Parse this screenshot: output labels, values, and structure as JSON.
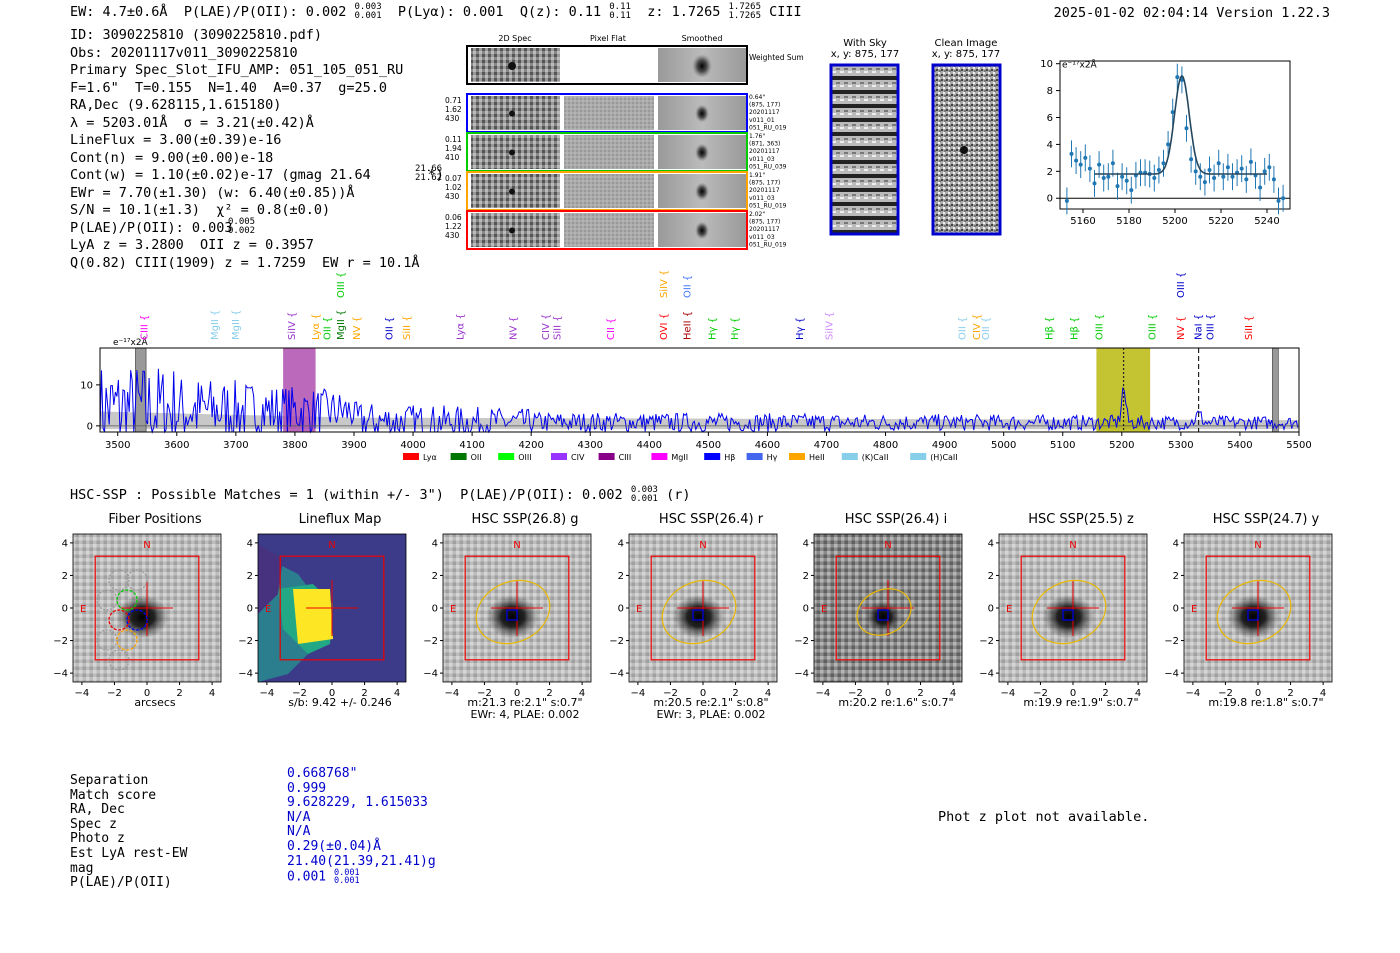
{
  "header": {
    "left": "EW: 4.7±0.6Å  P(LAE)/P(OII): 0.002   P(Lyα): 0.001  Q(z): 0.11    z: 1.7265        CIII",
    "ew": "EW: 4.7±0.6Å",
    "plae": "P(LAE)/P(OII): 0.002",
    "plae_sup": "0.003",
    "plae_sub": "0.001",
    "plya": "P(Lyα): 0.001",
    "qz": "Q(z): 0.11",
    "qz_sup": "0.11",
    "qz_sub": "0.11",
    "z": "z: 1.7265",
    "z_sup": "1.7265",
    "z_sub": "1.7265",
    "line": "CIII",
    "right": "2025-01-02 02:04:14  Version 1.22.3"
  },
  "info": [
    "ID: 3090225810 (3090225810.pdf)",
    "Obs: 20201117v011_3090225810",
    "Primary Spec_Slot_IFU_AMP: 051_105_051_RU",
    "F=1.6\"  T=0.155  N=1.40  A=0.37  g=25.0",
    "RA,Dec (9.628115,1.615180)",
    "λ = 5203.01Å  σ = 3.21(±0.42)Å",
    "LineFlux = 3.00(±0.39)e-16",
    "Cont(n) = 9.00(±0.00)e-18",
    "Cont(w) = 1.10(±0.02)e-17 (gmag 21.64       *)",
    "EWr = 7.70(±1.30) (w: 6.40(±0.85))Å",
    "S/N = 10.1(±1.3)  χ² = 0.8(±0.0)",
    "P(LAE)/P(OII): 0.003",
    "LyA z = 3.2800  OII z = 0.3957",
    "Q(0.82) CIII(1909) z = 1.7259  EW r = 10.1Å"
  ],
  "info_sup": {
    "gmag_sup": "21.66",
    "gmag_sub": "21.62",
    "plae_sup": "0.005",
    "plae_sub": "0.002"
  },
  "spec2d": {
    "col_labels": [
      "2D Spec",
      "Pixel Flat",
      "Smoothed"
    ],
    "weighted_label": "Weighted Sum",
    "rows": [
      {
        "w": [
          "0.71",
          "1.62",
          "430"
        ],
        "note": [
          "0.64\"",
          "(875, 177)",
          "20201117",
          "v011_01",
          "051_RU_019"
        ],
        "color": "#0000ff"
      },
      {
        "w": [
          "0.11",
          "1.94",
          "410"
        ],
        "note": [
          "1.76\"",
          "(871, 363)",
          "20201117",
          "v011_03",
          "051_RU_039"
        ],
        "color": "#00cc00"
      },
      {
        "w": [
          "0.07",
          "1.02",
          "430"
        ],
        "note": [
          "1.91\"",
          "(875, 177)",
          "20201117",
          "v011_03",
          "051_RU_019"
        ],
        "color": "#ffa500"
      },
      {
        "w": [
          "0.06",
          "1.22",
          "430"
        ],
        "note": [
          "2.02\"",
          "(875, 177)",
          "20201117",
          "v011_03",
          "051_RU_019"
        ],
        "color": "#ff0000"
      }
    ]
  },
  "sky": {
    "title": "With Sky",
    "coords": "x, y: 875, 177"
  },
  "clean": {
    "title": "Clean Image",
    "coords": "x, y: 875, 177"
  },
  "fit_chart": {
    "type": "line",
    "unit": "e⁻¹⁷x2Å",
    "xlim": [
      5150,
      5250
    ],
    "ylim": [
      -0.8,
      10.2
    ],
    "xticks": [
      5160,
      5180,
      5200,
      5220,
      5240
    ],
    "yticks": [
      0,
      2,
      4,
      6,
      8,
      10
    ],
    "x": [
      5153,
      5155,
      5157,
      5159,
      5161,
      5163,
      5165,
      5167,
      5169,
      5171,
      5173,
      5175,
      5177,
      5179,
      5181,
      5183,
      5185,
      5187,
      5189,
      5191,
      5193,
      5195,
      5197,
      5199,
      5201,
      5203,
      5205,
      5207,
      5209,
      5211,
      5213,
      5215,
      5217,
      5219,
      5221,
      5223,
      5225,
      5227,
      5229,
      5231,
      5233,
      5235,
      5237,
      5239,
      5241,
      5243,
      5245,
      5247
    ],
    "y": [
      -0.2,
      3.3,
      2.8,
      2.5,
      3.0,
      2.2,
      1.1,
      2.5,
      1.5,
      1.6,
      2.6,
      0.9,
      1.6,
      1.3,
      0.6,
      1.7,
      1.9,
      1.9,
      1.8,
      1.5,
      2.1,
      2.6,
      4.0,
      6.4,
      9.0,
      8.8,
      5.2,
      2.9,
      2.0,
      1.6,
      1.2,
      2.1,
      1.5,
      2.6,
      1.6,
      2.3,
      1.6,
      1.9,
      2.2,
      1.4,
      2.7,
      1.7,
      0.8,
      2.0,
      2.3,
      1.4,
      -0.2,
      0.0
    ],
    "err": 1.0,
    "model": {
      "base": 1.8,
      "amp": 7.3,
      "mu": 5203.0,
      "sigma": 3.2
    }
  },
  "spectrum": {
    "type": "line",
    "unit": "e⁻¹⁷x2Å",
    "xlim": [
      3470,
      5500
    ],
    "ylim": [
      -1.5,
      19
    ],
    "xticks": [
      3500,
      3600,
      3700,
      3800,
      3900,
      4000,
      4100,
      4200,
      4300,
      4400,
      4500,
      4600,
      4700,
      4800,
      4900,
      5000,
      5100,
      5200,
      5300,
      5400,
      5500
    ],
    "yticks": [
      0,
      10
    ],
    "highlight_bands": [
      {
        "x0": 3780,
        "x1": 3835,
        "color": "#aa44aa"
      },
      {
        "x0": 5157,
        "x1": 5248,
        "color": "#b5b500"
      }
    ],
    "masked_bands": [
      {
        "x0": 3530,
        "x1": 3548
      },
      {
        "x0": 5455,
        "x1": 5465
      }
    ],
    "vlines": [
      {
        "x": 5203,
        "style": "dotted"
      },
      {
        "x": 5330,
        "style": "dashed"
      }
    ],
    "line_labels": [
      {
        "x": 3545,
        "label": "CIII",
        "color": "#ff00ff",
        "row": 0
      },
      {
        "x": 3665,
        "label": "MgII",
        "color": "#87ceeb",
        "row": 0
      },
      {
        "x": 3700,
        "label": "MgII",
        "color": "#87ceeb",
        "row": 0
      },
      {
        "x": 3795,
        "label": "SiIV",
        "color": "#9933cc",
        "row": 0
      },
      {
        "x": 3836,
        "label": "Lyα",
        "color": "#ffa500",
        "row": 0
      },
      {
        "x": 3855,
        "label": "OII",
        "color": "#00cc00",
        "row": 0
      },
      {
        "x": 3878,
        "label": "MgII",
        "color": "#007700",
        "row": 0
      },
      {
        "x": 3878,
        "label": "OIII",
        "color": "#00cc00",
        "row": 2
      },
      {
        "x": 3905,
        "label": "NV",
        "color": "#ffa500",
        "row": 0
      },
      {
        "x": 3960,
        "label": "OII",
        "color": "#0000cc",
        "row": 0
      },
      {
        "x": 3990,
        "label": "SiII",
        "color": "#ffa500",
        "row": 0
      },
      {
        "x": 4080,
        "label": "Lyα",
        "color": "#9933cc",
        "row": 0
      },
      {
        "x": 4170,
        "label": "NV",
        "color": "#9933cc",
        "row": 0
      },
      {
        "x": 4225,
        "label": "CIV",
        "color": "#9933cc",
        "row": 0
      },
      {
        "x": 4245,
        "label": "SiII",
        "color": "#9933cc",
        "row": 0
      },
      {
        "x": 4335,
        "label": "CII",
        "color": "#ff00ff",
        "row": 0
      },
      {
        "x": 4425,
        "label": "OVI",
        "color": "#ff0000",
        "row": 0
      },
      {
        "x": 4425,
        "label": "SiIV",
        "color": "#ffa500",
        "row": 2
      },
      {
        "x": 4465,
        "label": "HeII",
        "color": "#aa0000",
        "row": 0
      },
      {
        "x": 4465,
        "label": "OII",
        "color": "#4477ff",
        "row": 2
      },
      {
        "x": 4507,
        "label": "Hγ",
        "color": "#00cc00",
        "row": 0
      },
      {
        "x": 4545,
        "label": "Hγ",
        "color": "#00cc00",
        "row": 0
      },
      {
        "x": 4655,
        "label": "Hγ",
        "color": "#0000cc",
        "row": 0
      },
      {
        "x": 4705,
        "label": "SiIV",
        "color": "#cc88ff",
        "row": 0
      },
      {
        "x": 4930,
        "label": "OII",
        "color": "#87ceeb",
        "row": 0
      },
      {
        "x": 4955,
        "label": "CIV",
        "color": "#ffa500",
        "row": 0
      },
      {
        "x": 4970,
        "label": "OII",
        "color": "#87ceeb",
        "row": 0
      },
      {
        "x": 5078,
        "label": "Hβ",
        "color": "#00cc00",
        "row": 0
      },
      {
        "x": 5120,
        "label": "Hβ",
        "color": "#00cc00",
        "row": 0
      },
      {
        "x": 5162,
        "label": "OIII",
        "color": "#00cc00",
        "row": 0
      },
      {
        "x": 5252,
        "label": "OIII",
        "color": "#00cc00",
        "row": 0
      },
      {
        "x": 5300,
        "label": "NV",
        "color": "#ff0000",
        "row": 0
      },
      {
        "x": 5300,
        "label": "OIII",
        "color": "#0000cc",
        "row": 2
      },
      {
        "x": 5330,
        "label": "NaI",
        "color": "#0000cc",
        "row": 0
      },
      {
        "x": 5350,
        "label": "OIII",
        "color": "#0000cc",
        "row": 0
      },
      {
        "x": 5415,
        "label": "SiII",
        "color": "#ff0000",
        "row": 0
      }
    ],
    "legend": [
      {
        "label": "Lyα",
        "color": "#ff0000"
      },
      {
        "label": "OII",
        "color": "#007700"
      },
      {
        "label": "OIII",
        "color": "#00ff00"
      },
      {
        "label": "CIV",
        "color": "#9933ff"
      },
      {
        "label": "CIII",
        "color": "#880088"
      },
      {
        "label": "MgII",
        "color": "#ff00ff"
      },
      {
        "label": "Hβ",
        "color": "#0000ff"
      },
      {
        "label": "Hγ",
        "color": "#4466ee"
      },
      {
        "label": "HeII",
        "color": "#ffa500"
      },
      {
        "label": "(K)CaII",
        "color": "#87ceeb"
      },
      {
        "label": "(H)CaII",
        "color": "#87ceeb"
      }
    ]
  },
  "hsc": {
    "title": "HSC-SSP : Possible Matches = 1 (within +/- 3\")  P(LAE)/P(OII): 0.002",
    "title_sup": "0.003",
    "title_sub": "0.001",
    "title_suffix": "(r)",
    "axis_ticks": [
      "4",
      "2",
      "0",
      "−2",
      "−4"
    ],
    "x_ticks": [
      "−4",
      "−2",
      "0",
      "2",
      "4"
    ],
    "north": "N",
    "east": "E",
    "panels": [
      {
        "title": "Fiber Positions",
        "foot": [
          "arcsecs"
        ]
      },
      {
        "title": "Lineflux Map",
        "foot": [
          "s/b: 9.42 +/- 0.246"
        ]
      },
      {
        "title": "HSC SSP(26.8) g",
        "foot": [
          "m:21.3  re:2.1\"  s:0.7\"",
          "EWr: 4, PLAE: 0.002"
        ]
      },
      {
        "title": "HSC SSP(26.4) r",
        "foot": [
          "m:20.5  re:2.1\"  s:0.8\"",
          "EWr: 3, PLAE: 0.002"
        ]
      },
      {
        "title": "HSC SSP(26.4) i",
        "foot": [
          "m:20.2  re:1.6\"  s:0.7\""
        ]
      },
      {
        "title": "HSC SSP(25.5) z",
        "foot": [
          "m:19.9  re:1.9\"  s:0.7\""
        ]
      },
      {
        "title": "HSC SSP(24.7) y",
        "foot": [
          "m:19.8  re:1.8\"  s:0.7\""
        ]
      }
    ]
  },
  "match": {
    "labels": [
      "Separation",
      "Match score",
      "RA, Dec",
      "Spec z",
      "Photo z",
      "Est LyA rest-EW",
      "mag",
      "P(LAE)/P(OII)"
    ],
    "values": [
      "0.668768\"",
      "0.999",
      "9.628229, 1.615033",
      "N/A",
      "N/A",
      "0.29(±0.04)Å",
      "21.40(21.39,21.41)g",
      "0.001"
    ],
    "plae_sup": "0.001",
    "plae_sub": "0.001"
  },
  "photz_note": "Phot z plot not available."
}
